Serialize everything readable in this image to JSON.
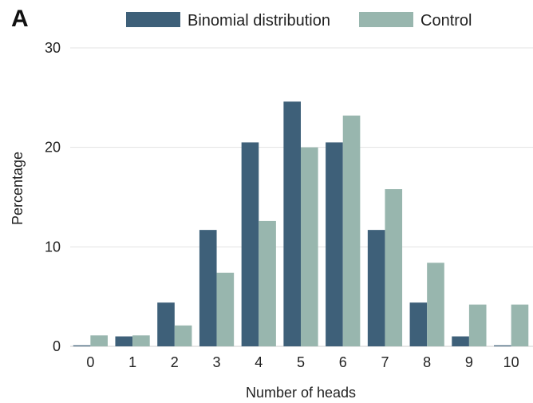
{
  "panel_label": "A",
  "chart_data": {
    "type": "bar",
    "title": "",
    "xlabel": "Number of heads",
    "ylabel": "Percentage",
    "ylim": [
      0,
      30
    ],
    "yticks": [
      "0",
      "10",
      "20",
      "30"
    ],
    "categories": [
      "0",
      "1",
      "2",
      "3",
      "4",
      "5",
      "6",
      "7",
      "8",
      "9",
      "10"
    ],
    "series": [
      {
        "name": "Binomial distribution",
        "color": "#3e6079",
        "values": [
          0.1,
          1.0,
          4.4,
          11.7,
          20.5,
          24.6,
          20.5,
          11.7,
          4.4,
          1.0,
          0.1
        ]
      },
      {
        "name": "Control",
        "color": "#98b6ae",
        "values": [
          1.1,
          1.1,
          2.1,
          7.4,
          12.6,
          20.0,
          23.2,
          15.8,
          8.4,
          4.2,
          4.2
        ]
      }
    ],
    "grid": true,
    "legend_position": "top"
  }
}
